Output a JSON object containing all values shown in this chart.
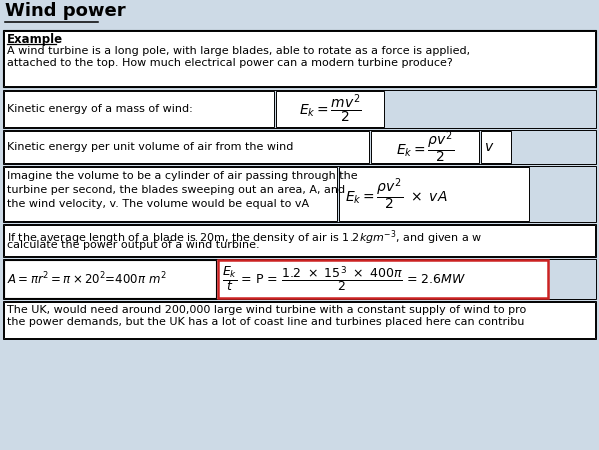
{
  "title": "Wind power",
  "bg_color": "#cddae6",
  "white": "#ffffff",
  "black": "#000000",
  "red_border": "#cc2222",
  "title_fontsize": 13,
  "body_fontsize": 8.0,
  "formula_fontsize": 10,
  "example_label": "Example",
  "example_text_line1": "A wind turbine is a long pole, with large blades, able to rotate as a force is applied,",
  "example_text_line2": "attached to the top. How much electrical power can a modern turbine produce?",
  "row1_text": "Kinetic energy of a mass of wind:",
  "row2_text": "Kinetic energy per unit volume of air from the wind",
  "row3_line1": "Imagine the volume to be a cylinder of air passing through the",
  "row3_line2": "turbine per second, the blades sweeping out an area, A, and",
  "row3_line3": "the wind velocity, v. The volume would be equal to vA",
  "row4_line1": "If the average length of a blade is 20m, the density of air is $1.2kgm^{-3}$, and given a w",
  "row4_line2": "calculate the power output of a wind turbine.",
  "bottom_line1": "The UK, would need around 200,000 large wind turbine with a constant supply of wind to pro",
  "bottom_line2": "the power demands, but the UK has a lot of coast line and turbines placed here can contribu"
}
